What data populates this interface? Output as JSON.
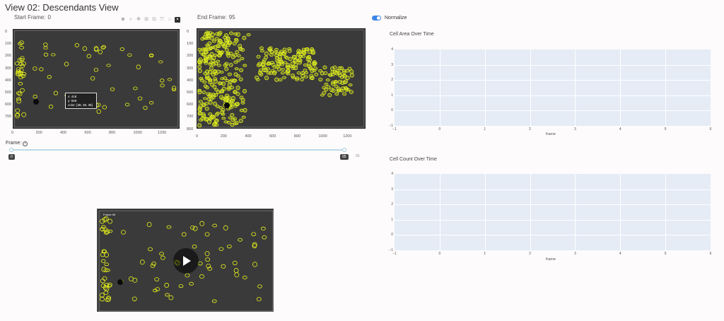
{
  "page": {
    "title": "View 02: Descendants View"
  },
  "start_frame": {
    "label": "Start Frame:",
    "value": "0"
  },
  "end_frame": {
    "label": "End Frame:",
    "value": "95"
  },
  "normalize": {
    "label": "Normalize",
    "on": true
  },
  "slider": {
    "label": "Frame:",
    "info_icon": "info-icon",
    "min_label": "0",
    "max_label": "95",
    "end_label": "95",
    "value": 95,
    "max": 95
  },
  "tooltip": {
    "x": "x: 418",
    "y": "y: 559",
    "color": "color: [38, 38, 38]"
  },
  "left_image": {
    "y_ticks": [
      "0",
      "100",
      "200",
      "300",
      "400",
      "500",
      "600",
      "700"
    ],
    "x_ticks": [
      "0",
      "200",
      "400",
      "600",
      "800",
      "1000",
      "1200"
    ]
  },
  "right_image": {
    "y_ticks": [
      "0",
      "100",
      "200",
      "300",
      "400",
      "500",
      "600",
      "700",
      "800"
    ],
    "x_ticks": [
      "0",
      "200",
      "400",
      "600",
      "800",
      "1000",
      "1200"
    ]
  },
  "area_plot": {
    "title": "Cell Area Over Time",
    "y_ticks": [
      "4",
      "3",
      "2",
      "1",
      "0",
      "−1"
    ],
    "x_ticks": [
      "−1",
      "0",
      "1",
      "2",
      "3",
      "4",
      "5",
      "6"
    ],
    "x_title": "frame"
  },
  "count_plot": {
    "title": "Cell Count Over Time",
    "y_ticks": [
      "4",
      "3",
      "2",
      "1",
      "0",
      "−1"
    ],
    "x_ticks": [
      "−1",
      "0",
      "1",
      "2",
      "3",
      "4",
      "5",
      "6"
    ],
    "x_title": "frame"
  },
  "video": {
    "label": "Frame 95",
    "play_icon": "play-icon"
  },
  "colors": {
    "cell_outline": "#e7f21a",
    "plot_bg": "#e5ecf6",
    "toggle": "#3d85e8"
  }
}
